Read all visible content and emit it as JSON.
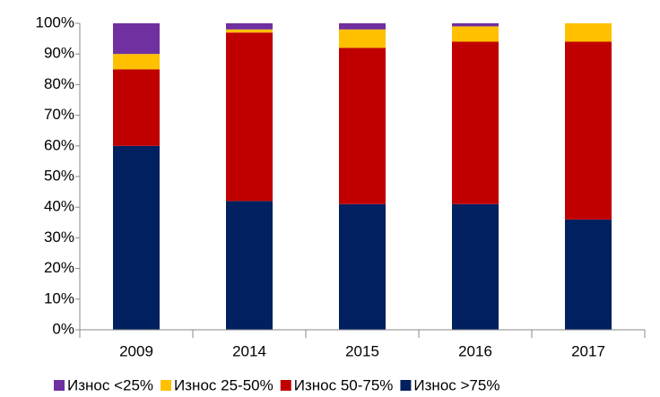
{
  "chart_data": {
    "type": "stacked_bar",
    "categories": [
      "2009",
      "2014",
      "2015",
      "2016",
      "2017"
    ],
    "series": [
      {
        "name": "Износ <25%",
        "color": "#7030a0",
        "values": [
          10,
          2,
          2,
          1,
          0
        ]
      },
      {
        "name": "Износ 25-50%",
        "color": "#ffc000",
        "values": [
          5,
          1,
          6,
          5,
          6
        ]
      },
      {
        "name": "Износ 50-75%",
        "color": "#c00000",
        "values": [
          25,
          55,
          51,
          53,
          58
        ]
      },
      {
        "name": "Износ >75%",
        "color": "#002060",
        "values": [
          60,
          42,
          41,
          41,
          36
        ]
      }
    ],
    "ylim": [
      0,
      100
    ],
    "yticks": [
      {
        "value": 0,
        "label": "0%"
      },
      {
        "value": 10,
        "label": "10%"
      },
      {
        "value": 20,
        "label": "20%"
      },
      {
        "value": 30,
        "label": "30%"
      },
      {
        "value": 40,
        "label": "40%"
      },
      {
        "value": 50,
        "label": "50%"
      },
      {
        "value": 60,
        "label": "60%"
      },
      {
        "value": 70,
        "label": "70%"
      },
      {
        "value": 80,
        "label": "80%"
      },
      {
        "value": 90,
        "label": "90%"
      },
      {
        "value": 100,
        "label": "100%"
      }
    ],
    "grid": false,
    "legend": "bottom"
  }
}
